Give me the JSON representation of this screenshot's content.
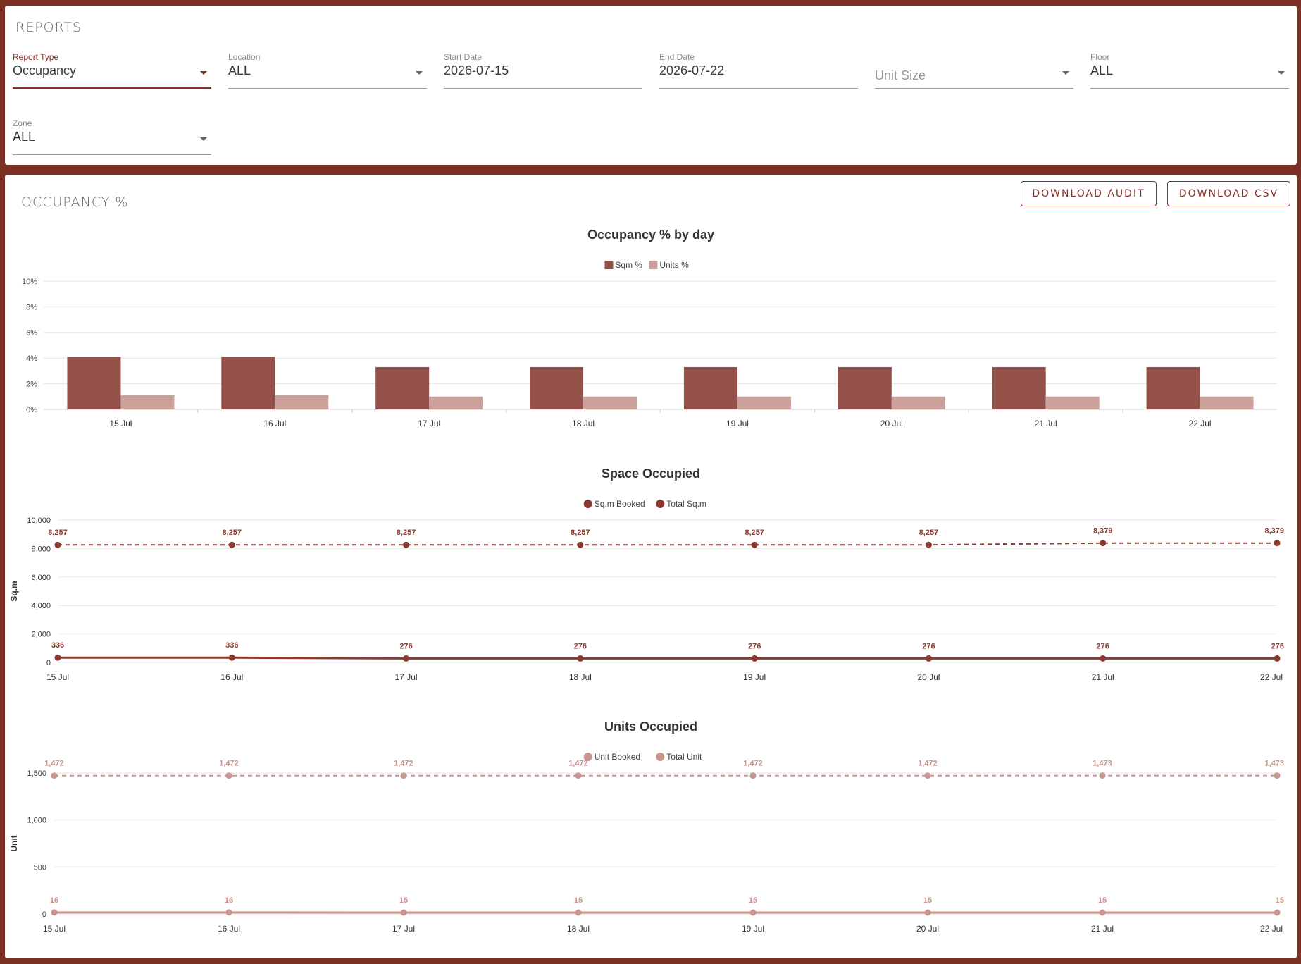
{
  "reports": {
    "title": "REPORTS",
    "filters": [
      {
        "label": "Report Type",
        "value": "Occupancy",
        "placeholder": ""
      },
      {
        "label": "Location",
        "value": "ALL",
        "placeholder": ""
      },
      {
        "label": "Start Date",
        "value": "2026-07-15",
        "placeholder": ""
      },
      {
        "label": "End Date",
        "value": "2026-07-22",
        "placeholder": ""
      },
      {
        "label": "",
        "value": "",
        "placeholder": "Unit Size"
      },
      {
        "label": "Floor",
        "value": "ALL",
        "placeholder": ""
      },
      {
        "label": "Zone",
        "value": "ALL",
        "placeholder": ""
      }
    ]
  },
  "occupancy": {
    "title": "OCCUPANCY %",
    "download_audit_label": "DOWNLOAD AUDIT",
    "download_csv_label": "DOWNLOAD CSV"
  },
  "colors": {
    "dark": "#8b3a2f",
    "light": "#c9958e",
    "bar_dark": "#93514a",
    "bar_light": "#cca19c"
  },
  "chart_data": [
    {
      "type": "bar",
      "title": "Occupancy % by day",
      "categories": [
        "15 Jul",
        "16 Jul",
        "17 Jul",
        "18 Jul",
        "19 Jul",
        "20 Jul",
        "21 Jul",
        "22 Jul"
      ],
      "series": [
        {
          "name": "Sqm %",
          "values": [
            4.1,
            4.1,
            3.3,
            3.3,
            3.3,
            3.3,
            3.3,
            3.3
          ]
        },
        {
          "name": "Units %",
          "values": [
            1.1,
            1.1,
            1.0,
            1.0,
            1.0,
            1.0,
            1.0,
            1.0
          ]
        }
      ],
      "ylim": [
        0,
        10
      ],
      "yticks": [
        "0%",
        "2%",
        "4%",
        "6%",
        "8%",
        "10%"
      ],
      "legend": "top-center",
      "grid": true
    },
    {
      "type": "line",
      "title": "Space Occupied",
      "ylabel": "Sq.m",
      "x": [
        "15 Jul",
        "16 Jul",
        "17 Jul",
        "18 Jul",
        "19 Jul",
        "20 Jul",
        "21 Jul",
        "22 Jul"
      ],
      "series": [
        {
          "name": "Sq.m Booked",
          "values": [
            336,
            336,
            276,
            276,
            276,
            276,
            276,
            276
          ],
          "labels": [
            "336",
            "336",
            "276",
            "276",
            "276",
            "276",
            "276",
            "276"
          ]
        },
        {
          "name": "Total Sq.m",
          "values": [
            8257,
            8257,
            8257,
            8257,
            8257,
            8257,
            8379,
            8379
          ],
          "labels": [
            "8,257",
            "8,257",
            "8,257",
            "8,257",
            "8,257",
            "8,257",
            "8,379",
            "8,379"
          ]
        }
      ],
      "ylim": [
        0,
        10000
      ],
      "yticks": [
        "0",
        "2,000",
        "4,000",
        "6,000",
        "8,000",
        "10,000"
      ],
      "legend": "top-center",
      "grid": true
    },
    {
      "type": "line",
      "title": "Units Occupied",
      "ylabel": "Unit",
      "x": [
        "15 Jul",
        "16 Jul",
        "17 Jul",
        "18 Jul",
        "19 Jul",
        "20 Jul",
        "21 Jul",
        "22 Jul"
      ],
      "series": [
        {
          "name": "Unit Booked",
          "values": [
            16,
            16,
            15,
            15,
            15,
            15,
            15,
            15
          ],
          "labels": [
            "16",
            "16",
            "15",
            "15",
            "15",
            "15",
            "15",
            "15"
          ]
        },
        {
          "name": "Total Unit",
          "values": [
            1472,
            1472,
            1472,
            1472,
            1472,
            1472,
            1473,
            1473
          ],
          "labels": [
            "1,472",
            "1,472",
            "1,472",
            "1,472",
            "1,472",
            "1,472",
            "1,473",
            "1,473"
          ]
        }
      ],
      "ylim": [
        0,
        1500
      ],
      "yticks": [
        "0",
        "500",
        "1,000",
        "1,500"
      ],
      "legend": "top-center",
      "grid": true
    }
  ]
}
